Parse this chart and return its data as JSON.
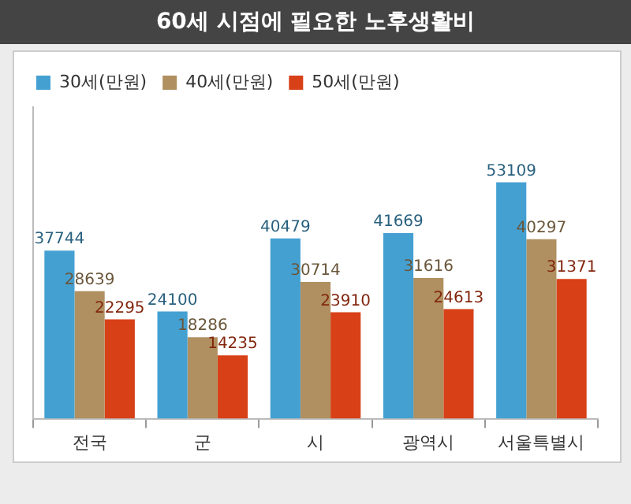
{
  "chart_data": {
    "type": "bar",
    "title": "60세 시점에 필요한 노후생활비",
    "categories": [
      "전국",
      "군",
      "시",
      "광역시",
      "서울특별시"
    ],
    "series": [
      {
        "name": "30세(만원)",
        "color": "#45a0d2",
        "values": [
          37744,
          24100,
          40479,
          41669,
          53109
        ]
      },
      {
        "name": "40세(만원)",
        "color": "#b09060",
        "values": [
          28639,
          18286,
          30714,
          31616,
          40297
        ]
      },
      {
        "name": "50세(만원)",
        "color": "#d84018",
        "values": [
          22295,
          14235,
          23910,
          24613,
          31371
        ]
      }
    ],
    "data_labels": true,
    "legend": "top left",
    "grid": false
  }
}
